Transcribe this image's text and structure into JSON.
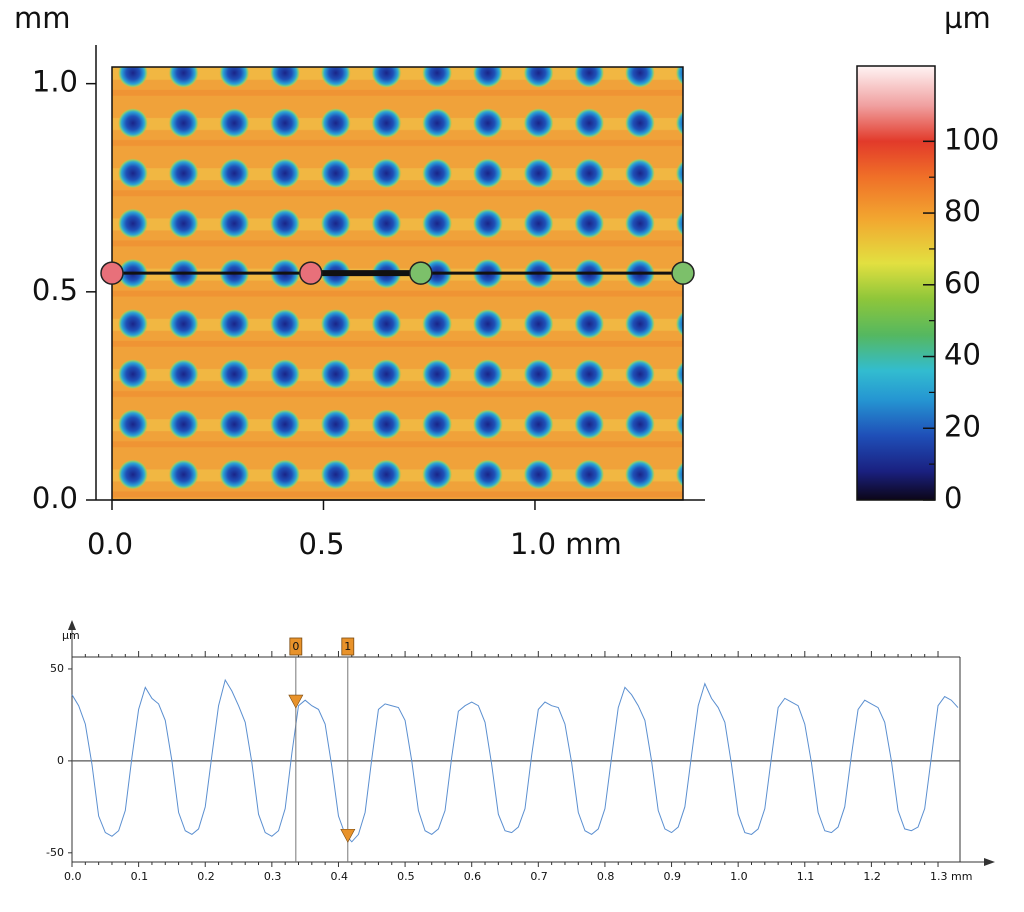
{
  "chart_data": [
    {
      "type": "heatmap",
      "y_label": "mm",
      "xlim": [
        0,
        1.35
      ],
      "ylim": [
        0,
        1.04
      ],
      "xticks": [
        {
          "value": 0,
          "label": "0.0"
        },
        {
          "value": 0.5,
          "label": "0.5"
        },
        {
          "value": 1,
          "label": "1.0 mm"
        }
      ],
      "yticks": [
        {
          "value": 0,
          "label": "0.0"
        },
        {
          "value": 0.5,
          "label": "0.5"
        },
        {
          "value": 1,
          "label": "1.0"
        }
      ],
      "profile": {
        "y": 0.545,
        "x": [
          0,
          0.47,
          0.73,
          1.35
        ],
        "colors": [
          "#e8707a",
          "#e8707a",
          "#7cc06a",
          "#7cc06a"
        ]
      },
      "colorbar": {
        "label": "µm",
        "lim": [
          0,
          121
        ],
        "ticks": [
          0,
          20,
          40,
          60,
          80,
          100
        ],
        "colorscale": [
          [
            0,
            "#0c0618"
          ],
          [
            8,
            "#1a2080"
          ],
          [
            18,
            "#1f4fb8"
          ],
          [
            28,
            "#2596d2"
          ],
          [
            36,
            "#32bcd0"
          ],
          [
            46,
            "#55b860"
          ],
          [
            56,
            "#8ec63a"
          ],
          [
            66,
            "#e2e040"
          ],
          [
            78,
            "#f2a830"
          ],
          [
            90,
            "#f07028"
          ],
          [
            100,
            "#e23a2a"
          ],
          [
            110,
            "#f0a0a0"
          ],
          [
            121,
            "#fff4f4"
          ]
        ]
      }
    },
    {
      "type": "line",
      "y_label": "µm",
      "xlim": [
        0,
        1.333
      ],
      "ylim": [
        -55,
        56.5
      ],
      "xticks": [
        {
          "value": 0,
          "label": "0.0"
        },
        0.1,
        0.2,
        0.3,
        0.4,
        0.5,
        0.6,
        0.7,
        0.8,
        0.9,
        {
          "value": 1,
          "label": "1.0"
        },
        1.1,
        1.2,
        {
          "value": 1.3,
          "label": "1.3 mm"
        }
      ],
      "yticks": [
        -50,
        0,
        50
      ],
      "zero_line": true,
      "x": [
        0,
        0.01,
        0.02,
        0.03,
        0.04,
        0.05,
        0.06,
        0.07,
        0.08,
        0.09,
        0.1,
        0.11,
        0.12,
        0.13,
        0.14,
        0.15,
        0.16,
        0.17,
        0.18,
        0.19,
        0.2,
        0.21,
        0.22,
        0.23,
        0.24,
        0.25,
        0.26,
        0.27,
        0.28,
        0.29,
        0.3,
        0.31,
        0.32,
        0.33,
        0.34,
        0.35,
        0.36,
        0.37,
        0.38,
        0.39,
        0.4,
        0.41,
        0.42,
        0.43,
        0.44,
        0.45,
        0.46,
        0.47,
        0.48,
        0.49,
        0.5,
        0.51,
        0.52,
        0.53,
        0.54,
        0.55,
        0.56,
        0.57,
        0.58,
        0.59,
        0.6,
        0.61,
        0.62,
        0.63,
        0.64,
        0.65,
        0.66,
        0.67,
        0.68,
        0.69,
        0.7,
        0.71,
        0.72,
        0.73,
        0.74,
        0.75,
        0.76,
        0.77,
        0.78,
        0.79,
        0.8,
        0.81,
        0.82,
        0.83,
        0.84,
        0.85,
        0.86,
        0.87,
        0.88,
        0.89,
        0.9,
        0.91,
        0.92,
        0.93,
        0.94,
        0.95,
        0.96,
        0.97,
        0.98,
        0.99,
        1,
        1.01,
        1.02,
        1.03,
        1.04,
        1.05,
        1.06,
        1.07,
        1.08,
        1.09,
        1.1,
        1.11,
        1.12,
        1.13,
        1.14,
        1.15,
        1.16,
        1.17,
        1.18,
        1.19,
        1.2,
        1.21,
        1.22,
        1.23,
        1.24,
        1.25,
        1.26,
        1.27,
        1.28,
        1.29,
        1.3,
        1.31,
        1.32,
        1.33
      ],
      "series": [
        {
          "color": "#5b8fd0",
          "values": [
            36,
            30,
            20,
            -2,
            -30,
            -39,
            -41,
            -38,
            -27,
            2,
            28,
            40,
            34,
            31,
            22,
            0,
            -28,
            -38,
            -40,
            -37,
            -25,
            3,
            30,
            44,
            38,
            30,
            21,
            -1,
            -29,
            -39,
            -41,
            -38,
            -26,
            4,
            30,
            33,
            30,
            28,
            20,
            -3,
            -30,
            -40,
            -44,
            -40,
            -28,
            1,
            28,
            31,
            30,
            29,
            22,
            0,
            -27,
            -38,
            -40,
            -37,
            -27,
            2,
            27,
            30,
            32,
            30,
            21,
            -2,
            -29,
            -38,
            -39,
            -36,
            -26,
            3,
            28,
            32,
            30,
            29,
            20,
            -1,
            -28,
            -38,
            -40,
            -37,
            -26,
            2,
            29,
            40,
            36,
            30,
            22,
            0,
            -27,
            -37,
            -39,
            -36,
            -25,
            3,
            30,
            42,
            34,
            29,
            21,
            -2,
            -29,
            -39,
            -40,
            -37,
            -26,
            2,
            29,
            34,
            32,
            30,
            20,
            -1,
            -28,
            -38,
            -39,
            -36,
            -25,
            3,
            28,
            33,
            31,
            29,
            21,
            0,
            -27,
            -37,
            -38,
            -36,
            -26,
            2,
            30,
            35,
            33,
            29
          ]
        }
      ],
      "cursors": [
        {
          "label": "0",
          "x": 0.336,
          "value": 32
        },
        {
          "label": "1",
          "x": 0.414,
          "value": -41
        }
      ],
      "cursor_color": "#e8922a"
    }
  ]
}
